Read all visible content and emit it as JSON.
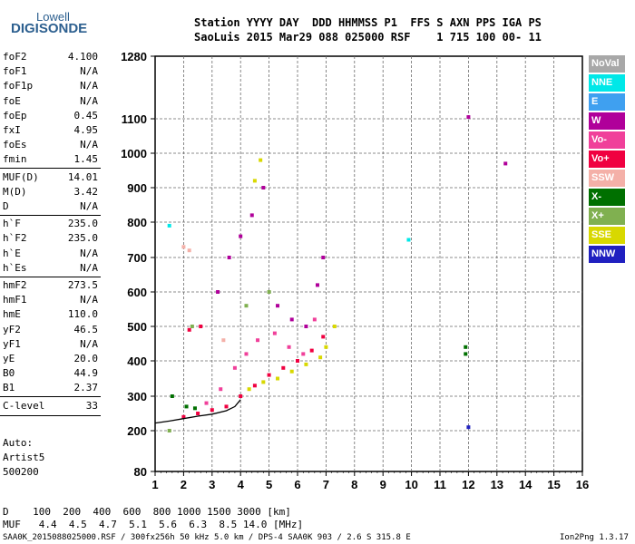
{
  "logo": {
    "top": "Lowell",
    "main": "DIGISONDE"
  },
  "header": {
    "line1": "Station YYYY DAY  DDD HHMMSS P1  FFS S AXN PPS IGA PS",
    "line2": "SaoLuis 2015 Mar29 088 025000 RSF    1 715 100 00- 11"
  },
  "params": [
    {
      "name": "foF2",
      "value": "4.100"
    },
    {
      "name": "foF1",
      "value": "N/A"
    },
    {
      "name": "foF1p",
      "value": "N/A"
    },
    {
      "name": "foE",
      "value": "N/A"
    },
    {
      "name": "foEp",
      "value": "0.45"
    },
    {
      "name": "fxI",
      "value": "4.95"
    },
    {
      "name": "foEs",
      "value": "N/A"
    },
    {
      "name": "fmin",
      "value": "1.45"
    },
    {
      "name": "MUF(D)",
      "value": "14.01"
    },
    {
      "name": "M(D)",
      "value": "3.42"
    },
    {
      "name": "D",
      "value": "N/A"
    },
    {
      "name": "h`F",
      "value": "235.0"
    },
    {
      "name": "h`F2",
      "value": "235.0"
    },
    {
      "name": "h`E",
      "value": "N/A"
    },
    {
      "name": "h`Es",
      "value": "N/A"
    },
    {
      "name": "hmF2",
      "value": "273.5"
    },
    {
      "name": "hmF1",
      "value": "N/A"
    },
    {
      "name": "hmE",
      "value": "110.0"
    },
    {
      "name": "yF2",
      "value": "46.5"
    },
    {
      "name": "yF1",
      "value": "N/A"
    },
    {
      "name": "yE",
      "value": "20.0"
    },
    {
      "name": "B0",
      "value": "44.9"
    },
    {
      "name": "B1",
      "value": "2.37"
    },
    {
      "name": "C-level",
      "value": "33"
    }
  ],
  "autoscale": [
    "Auto:",
    "Artist5",
    "500200"
  ],
  "legend": [
    {
      "label": "NoVal",
      "color": "#a8a8a8"
    },
    {
      "label": "NNE",
      "color": "#00e8e8"
    },
    {
      "label": "E",
      "color": "#3fa0f0"
    },
    {
      "label": "W",
      "color": "#b0009a"
    },
    {
      "label": "Vo-",
      "color": "#f0409a"
    },
    {
      "label": "Vo+",
      "color": "#f00040"
    },
    {
      "label": "SSW",
      "color": "#f4b0a8"
    },
    {
      "label": "X-",
      "color": "#007000"
    },
    {
      "label": "X+",
      "color": "#80b050"
    },
    {
      "label": "SSE",
      "color": "#d8d800"
    },
    {
      "label": "NNW",
      "color": "#2020c0"
    }
  ],
  "footer": {
    "d_row": "D    100  200  400  600  800 1000 1500 3000 [km]",
    "muf_row": "MUF   4.4  4.5  4.7  5.1  5.6  6.3  8.5 14.0 [MHz]",
    "file_info": "SAA0K_2015088025000.RSF / 300fx256h 50 kHz 5.0 km / DPS-4 SAA0K 903 / 2.6 S 315.8 E",
    "version": "Ion2Png 1.3.17"
  },
  "chart_data": {
    "type": "scatter",
    "title": "",
    "xlabel": "",
    "ylabel": "",
    "xlim": [
      1,
      16
    ],
    "ylim": [
      80,
      1280
    ],
    "x_ticks": [
      "1",
      "2",
      "3",
      "4",
      "5",
      "6",
      "7",
      "8",
      "9",
      "10",
      "11",
      "12",
      "13",
      "14",
      "15",
      "16"
    ],
    "y_ticks": [
      {
        "value": 80,
        "label": "80"
      },
      {
        "value": 200,
        "label": "200"
      },
      {
        "value": 300,
        "label": "300"
      },
      {
        "value": 400,
        "label": "400"
      },
      {
        "value": 500,
        "label": "500"
      },
      {
        "value": 600,
        "label": "600"
      },
      {
        "value": 700,
        "label": "700"
      },
      {
        "value": 800,
        "label": "800"
      },
      {
        "value": 900,
        "label": "900"
      },
      {
        "value": 1000,
        "label": "1000"
      },
      {
        "value": 1100,
        "label": "1100"
      },
      {
        "value": 1280,
        "label": "1280"
      }
    ],
    "grid": true,
    "y_scale": "nonlinear",
    "series": [
      {
        "color_key": "Vo+",
        "points": [
          [
            2.0,
            240
          ],
          [
            2.5,
            250
          ],
          [
            3.0,
            260
          ],
          [
            3.5,
            270
          ],
          [
            4.0,
            300
          ],
          [
            4.5,
            330
          ],
          [
            5.0,
            360
          ],
          [
            5.5,
            380
          ],
          [
            6.0,
            400
          ],
          [
            6.5,
            430
          ],
          [
            6.9,
            470
          ],
          [
            2.2,
            490
          ],
          [
            2.6,
            500
          ]
        ]
      },
      {
        "color_key": "W",
        "points": [
          [
            3.2,
            600
          ],
          [
            3.6,
            700
          ],
          [
            4.0,
            760
          ],
          [
            4.4,
            820
          ],
          [
            4.8,
            900
          ],
          [
            5.3,
            560
          ],
          [
            5.8,
            520
          ],
          [
            6.3,
            500
          ],
          [
            6.7,
            620
          ],
          [
            6.9,
            700
          ],
          [
            12.0,
            1105
          ],
          [
            13.3,
            970
          ]
        ]
      },
      {
        "color_key": "Vo-",
        "points": [
          [
            2.8,
            280
          ],
          [
            3.3,
            320
          ],
          [
            3.8,
            380
          ],
          [
            4.2,
            420
          ],
          [
            4.6,
            460
          ],
          [
            5.2,
            480
          ],
          [
            5.7,
            440
          ],
          [
            6.2,
            420
          ],
          [
            6.6,
            520
          ]
        ]
      },
      {
        "color_key": "SSE",
        "points": [
          [
            4.3,
            320
          ],
          [
            4.8,
            340
          ],
          [
            5.3,
            350
          ],
          [
            5.8,
            370
          ],
          [
            6.3,
            390
          ],
          [
            6.8,
            410
          ],
          [
            7.0,
            440
          ],
          [
            7.3,
            500
          ],
          [
            4.7,
            980
          ],
          [
            4.5,
            920
          ]
        ]
      },
      {
        "color_key": "X-",
        "points": [
          [
            2.1,
            270
          ],
          [
            2.4,
            265
          ],
          [
            1.6,
            300
          ],
          [
            11.9,
            440
          ],
          [
            11.9,
            420
          ]
        ]
      },
      {
        "color_key": "X+",
        "points": [
          [
            2.3,
            500
          ],
          [
            4.2,
            560
          ],
          [
            5.0,
            600
          ],
          [
            1.5,
            200
          ]
        ]
      },
      {
        "color_key": "SSW",
        "points": [
          [
            2.0,
            730
          ],
          [
            2.2,
            720
          ],
          [
            3.4,
            460
          ]
        ]
      },
      {
        "color_key": "NNE",
        "points": [
          [
            1.5,
            790
          ],
          [
            9.9,
            750
          ]
        ]
      },
      {
        "color_key": "NNW",
        "points": [
          [
            12.0,
            210
          ]
        ]
      }
    ],
    "trace": {
      "label": "profile",
      "points": [
        [
          1.0,
          222
        ],
        [
          1.5,
          228
        ],
        [
          2.0,
          235
        ],
        [
          2.5,
          242
        ],
        [
          3.0,
          248
        ],
        [
          3.5,
          258
        ],
        [
          3.8,
          270
        ],
        [
          4.0,
          290
        ]
      ]
    }
  }
}
